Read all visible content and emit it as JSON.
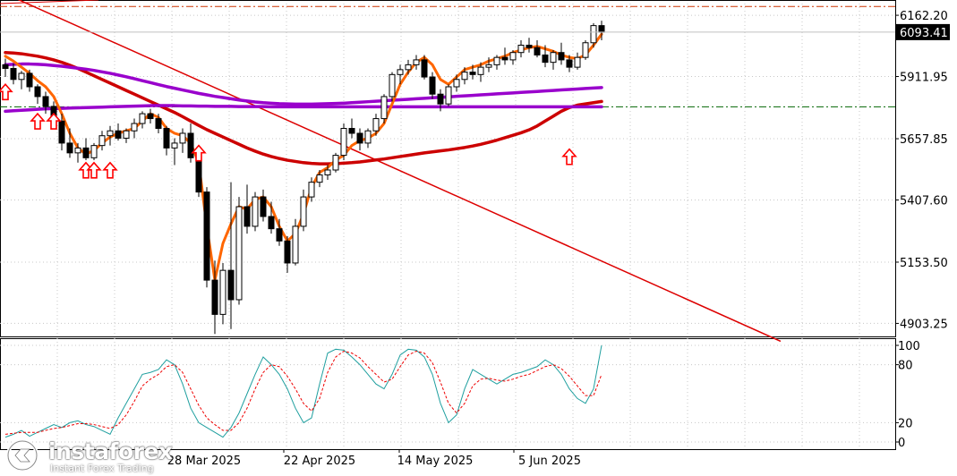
{
  "chart_data": [
    {
      "type": "candlestick",
      "title": "",
      "y_ticks": [
        6162.2,
        5911.95,
        5657.85,
        5407.6,
        5153.5,
        4903.25
      ],
      "ylim": [
        4850,
        6210
      ],
      "current_price": "6093.41",
      "x_labels": [
        "28 Mar 2025",
        "22 Apr 2025",
        "14 May 2025",
        "5 Jun 2025"
      ],
      "grid": true,
      "candles": [
        [
          5960,
          5985,
          5910,
          5945
        ],
        [
          5945,
          5965,
          5880,
          5900
        ],
        [
          5900,
          5935,
          5860,
          5925
        ],
        [
          5925,
          5940,
          5850,
          5870
        ],
        [
          5870,
          5880,
          5800,
          5830
        ],
        [
          5830,
          5850,
          5760,
          5790
        ],
        [
          5790,
          5810,
          5700,
          5730
        ],
        [
          5730,
          5760,
          5610,
          5640
        ],
        [
          5640,
          5700,
          5580,
          5600
        ],
        [
          5600,
          5640,
          5560,
          5620
        ],
        [
          5620,
          5660,
          5570,
          5580
        ],
        [
          5580,
          5640,
          5570,
          5630
        ],
        [
          5630,
          5690,
          5610,
          5670
        ],
        [
          5670,
          5710,
          5630,
          5690
        ],
        [
          5690,
          5720,
          5650,
          5660
        ],
        [
          5660,
          5700,
          5640,
          5690
        ],
        [
          5690,
          5740,
          5660,
          5720
        ],
        [
          5720,
          5770,
          5700,
          5760
        ],
        [
          5760,
          5780,
          5720,
          5740
        ],
        [
          5740,
          5760,
          5680,
          5700
        ],
        [
          5700,
          5710,
          5590,
          5620
        ],
        [
          5620,
          5660,
          5550,
          5640
        ],
        [
          5640,
          5700,
          5600,
          5680
        ],
        [
          5680,
          5720,
          5560,
          5580
        ],
        [
          5580,
          5610,
          5420,
          5440
        ],
        [
          5440,
          5460,
          5050,
          5080
        ],
        [
          5080,
          5160,
          4860,
          4940
        ],
        [
          4940,
          5150,
          4900,
          5120
        ],
        [
          5120,
          5480,
          4880,
          5000
        ],
        [
          5000,
          5420,
          4980,
          5380
        ],
        [
          5380,
          5470,
          5270,
          5300
        ],
        [
          5300,
          5440,
          5280,
          5420
        ],
        [
          5420,
          5450,
          5320,
          5340
        ],
        [
          5340,
          5400,
          5270,
          5290
        ],
        [
          5290,
          5330,
          5220,
          5240
        ],
        [
          5240,
          5260,
          5110,
          5150
        ],
        [
          5150,
          5330,
          5140,
          5300
        ],
        [
          5300,
          5450,
          5280,
          5420
        ],
        [
          5420,
          5500,
          5400,
          5480
        ],
        [
          5480,
          5530,
          5460,
          5510
        ],
        [
          5510,
          5550,
          5490,
          5530
        ],
        [
          5530,
          5600,
          5520,
          5590
        ],
        [
          5590,
          5720,
          5570,
          5700
        ],
        [
          5700,
          5740,
          5660,
          5680
        ],
        [
          5680,
          5700,
          5610,
          5640
        ],
        [
          5640,
          5700,
          5620,
          5690
        ],
        [
          5690,
          5760,
          5670,
          5740
        ],
        [
          5740,
          5840,
          5720,
          5830
        ],
        [
          5830,
          5930,
          5810,
          5920
        ],
        [
          5920,
          5960,
          5880,
          5940
        ],
        [
          5940,
          5980,
          5920,
          5960
        ],
        [
          5960,
          6000,
          5940,
          5980
        ],
        [
          5980,
          6000,
          5900,
          5910
        ],
        [
          5910,
          5930,
          5820,
          5840
        ],
        [
          5840,
          5860,
          5770,
          5800
        ],
        [
          5800,
          5880,
          5790,
          5870
        ],
        [
          5870,
          5920,
          5850,
          5900
        ],
        [
          5900,
          5950,
          5880,
          5930
        ],
        [
          5930,
          5960,
          5900,
          5920
        ],
        [
          5920,
          5970,
          5890,
          5950
        ],
        [
          5950,
          5990,
          5930,
          5960
        ],
        [
          5960,
          6000,
          5940,
          5990
        ],
        [
          5990,
          6030,
          5960,
          5980
        ],
        [
          5980,
          6020,
          5960,
          6010
        ],
        [
          6010,
          6060,
          5990,
          6040
        ],
        [
          6040,
          6070,
          6010,
          6030
        ],
        [
          6030,
          6060,
          5990,
          6000
        ],
        [
          6000,
          6040,
          5950,
          5970
        ],
        [
          5970,
          6020,
          5940,
          6010
        ],
        [
          6010,
          6050,
          5960,
          5980
        ],
        [
          5980,
          6000,
          5930,
          5950
        ],
        [
          5950,
          6010,
          5940,
          5990
        ],
        [
          5990,
          6060,
          5980,
          6050
        ],
        [
          6050,
          6130,
          6030,
          6120
        ],
        [
          6120,
          6140,
          6060,
          6093
        ]
      ],
      "lines": [
        {
          "name": "",
          "color": "#ff6600",
          "values": [
            5995,
            5975,
            5950,
            5925,
            5895,
            5870,
            5830,
            5760,
            5680,
            5620,
            5595,
            5610,
            5640,
            5665,
            5680,
            5690,
            5700,
            5730,
            5760,
            5745,
            5700,
            5680,
            5670,
            5640,
            5560,
            5300,
            5080,
            5230,
            5310,
            5380,
            5370,
            5410,
            5420,
            5380,
            5300,
            5240,
            5270,
            5350,
            5460,
            5520,
            5540,
            5570,
            5590,
            5630,
            5650,
            5660,
            5680,
            5720,
            5800,
            5880,
            5930,
            5970,
            5990,
            5960,
            5900,
            5880,
            5910,
            5940,
            5950,
            5960,
            5975,
            5985,
            5995,
            6010,
            6020,
            6030,
            6035,
            6025,
            6015,
            6000,
            5990,
            5985,
            6000,
            6040,
            6085
          ]
        },
        {
          "name": "",
          "color": "#cc0000",
          "values": [
            6010,
            6008,
            6005,
            6000,
            5995,
            5988,
            5980,
            5970,
            5958,
            5945,
            5930,
            5915,
            5900,
            5885,
            5870,
            5855,
            5840,
            5825,
            5810,
            5795,
            5780,
            5765,
            5748,
            5730,
            5712,
            5695,
            5680,
            5665,
            5650,
            5635,
            5620,
            5607,
            5595,
            5585,
            5577,
            5570,
            5565,
            5560,
            5557,
            5555,
            5555,
            5556,
            5558,
            5560,
            5563,
            5567,
            5571,
            5575,
            5580,
            5585,
            5590,
            5595,
            5600,
            5604,
            5608,
            5612,
            5617,
            5622,
            5628,
            5635,
            5643,
            5652,
            5662,
            5672,
            5682,
            5694,
            5710,
            5730,
            5750,
            5770,
            5785,
            5795,
            5800,
            5805,
            5810
          ]
        },
        {
          "name": "",
          "color": "#9900cc",
          "values": [
            5960,
            5962,
            5963,
            5963,
            5962,
            5960,
            5957,
            5954,
            5950,
            5946,
            5942,
            5937,
            5931,
            5925,
            5918,
            5911,
            5903,
            5895,
            5887,
            5879,
            5871,
            5864,
            5857,
            5850,
            5843,
            5837,
            5831,
            5826,
            5821,
            5816,
            5812,
            5808,
            5805,
            5803,
            5801,
            5800,
            5799,
            5799,
            5799,
            5800,
            5801,
            5802,
            5803,
            5805,
            5807,
            5809,
            5811,
            5813,
            5815,
            5817,
            5819,
            5821,
            5823,
            5825,
            5827,
            5829,
            5831,
            5833,
            5835,
            5837,
            5839,
            5841,
            5843,
            5845,
            5847,
            5849,
            5851,
            5853,
            5855,
            5857,
            5859,
            5861,
            5863,
            5865,
            5867
          ]
        },
        {
          "name": "",
          "color": "#9900cc",
          "values": [
            5770,
            5772,
            5774,
            5776,
            5778,
            5780,
            5781,
            5782,
            5783,
            5784,
            5785,
            5786,
            5787,
            5788,
            5789,
            5790,
            5791,
            5792,
            5793,
            5793,
            5793,
            5793,
            5792,
            5792,
            5791,
            5791,
            5790,
            5790,
            5790,
            5789,
            5789,
            5789,
            5789,
            5788,
            5788,
            5788,
            5788,
            5788,
            5788,
            5788,
            5788,
            5788,
            5788,
            5788,
            5788,
            5788,
            5788,
            5788,
            5788,
            5788,
            5788,
            5788,
            5788,
            5788,
            5788,
            5788,
            5788,
            5788,
            5788,
            5788,
            5788,
            5788,
            5788,
            5788,
            5788,
            5788,
            5788,
            5788,
            5788,
            5788,
            5788,
            5788,
            5788,
            5788,
            5788
          ]
        }
      ],
      "trendline": {
        "color": "#dd0000",
        "from": [
          0,
          6250
        ],
        "to": [
          94,
          4830
        ]
      },
      "horizontal_lines": [
        {
          "value": 6198,
          "color": "#cc3300",
          "style": "dash-dot"
        },
        {
          "value": 5788,
          "color": "#006600",
          "style": "dash-dot"
        }
      ],
      "signal_arrows": {
        "color": "#ff0000",
        "direction": "up",
        "at": [
          [
            0,
            5880
          ],
          [
            4,
            5760
          ],
          [
            6,
            5760
          ],
          [
            10,
            5560
          ],
          [
            11,
            5560
          ],
          [
            13,
            5560
          ],
          [
            24,
            5630
          ],
          [
            70,
            5615
          ]
        ]
      }
    },
    {
      "type": "line",
      "title": "",
      "y_ticks": [
        100,
        80,
        20,
        0
      ],
      "ylim": [
        0,
        100
      ],
      "series": [
        {
          "name": "",
          "color": "#1f9f9f",
          "style": "solid",
          "values": [
            5,
            8,
            12,
            6,
            10,
            14,
            18,
            15,
            20,
            22,
            18,
            16,
            12,
            8,
            25,
            40,
            55,
            70,
            72,
            75,
            85,
            80,
            60,
            35,
            20,
            15,
            10,
            5,
            15,
            30,
            50,
            70,
            88,
            80,
            70,
            55,
            35,
            20,
            25,
            60,
            92,
            96,
            95,
            88,
            80,
            70,
            60,
            55,
            70,
            90,
            96,
            95,
            88,
            70,
            40,
            20,
            28,
            55,
            75,
            70,
            65,
            60,
            65,
            70,
            72,
            75,
            78,
            85,
            80,
            70,
            55,
            45,
            40,
            55,
            100
          ]
        },
        {
          "name": "",
          "color": "#ee0000",
          "style": "dashed",
          "values": [
            8,
            9,
            10,
            10,
            10,
            12,
            14,
            15,
            17,
            19,
            19,
            18,
            16,
            14,
            18,
            28,
            42,
            58,
            65,
            70,
            78,
            80,
            72,
            55,
            38,
            25,
            18,
            12,
            12,
            20,
            35,
            55,
            72,
            80,
            78,
            68,
            55,
            40,
            32,
            45,
            72,
            88,
            94,
            92,
            87,
            78,
            70,
            62,
            65,
            78,
            90,
            94,
            92,
            82,
            62,
            40,
            30,
            40,
            58,
            65,
            66,
            64,
            63,
            65,
            68,
            70,
            74,
            78,
            80,
            76,
            68,
            58,
            48,
            48,
            70
          ]
        }
      ]
    }
  ],
  "logo": {
    "name": "instaforex",
    "tagline": "Instant Forex Trading"
  }
}
